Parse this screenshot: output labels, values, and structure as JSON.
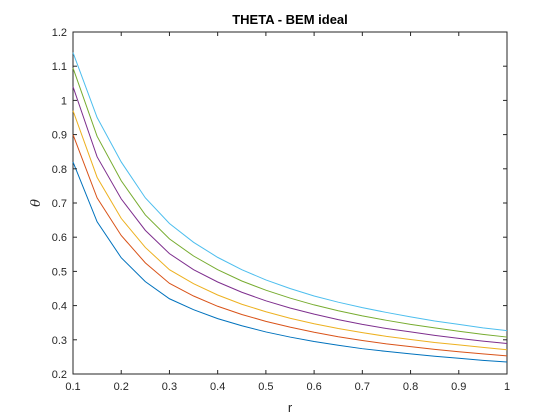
{
  "chart_data": {
    "type": "line",
    "title": "THETA - BEM ideal",
    "xlabel": "r",
    "ylabel": "θ",
    "xlim": [
      0.1,
      1
    ],
    "ylim": [
      0.2,
      1.2
    ],
    "xticks": [
      0.1,
      0.2,
      0.3,
      0.4,
      0.5,
      0.6,
      0.7,
      0.8,
      0.9,
      1
    ],
    "xtick_labels": [
      "0.1",
      "0.2",
      "0.3",
      "0.4",
      "0.5",
      "0.6",
      "0.7",
      "0.8",
      "0.9",
      "1"
    ],
    "yticks": [
      0.2,
      0.3,
      0.4,
      0.5,
      0.6,
      0.7,
      0.8,
      0.9,
      1,
      1.1,
      1.2
    ],
    "ytick_labels": [
      "0.2",
      "0.3",
      "0.4",
      "0.5",
      "0.6",
      "0.7",
      "0.8",
      "0.9",
      "1",
      "1.1",
      "1.2"
    ],
    "grid": false,
    "legend": "none",
    "x": [
      0.1,
      0.15,
      0.2,
      0.25,
      0.3,
      0.35,
      0.4,
      0.45,
      0.5,
      0.55,
      0.6,
      0.65,
      0.7,
      0.75,
      0.8,
      0.85,
      0.9,
      0.95,
      1
    ],
    "series": [
      {
        "color": "#0072BD",
        "values": [
          0.82,
          0.645,
          0.54,
          0.47,
          0.42,
          0.388,
          0.362,
          0.341,
          0.323,
          0.308,
          0.295,
          0.284,
          0.274,
          0.266,
          0.259,
          0.252,
          0.246,
          0.24,
          0.235
        ]
      },
      {
        "color": "#D95319",
        "values": [
          0.9,
          0.715,
          0.605,
          0.525,
          0.465,
          0.428,
          0.398,
          0.374,
          0.354,
          0.337,
          0.322,
          0.309,
          0.298,
          0.288,
          0.28,
          0.272,
          0.265,
          0.259,
          0.253
        ]
      },
      {
        "color": "#EDB120",
        "values": [
          0.97,
          0.775,
          0.655,
          0.57,
          0.505,
          0.464,
          0.431,
          0.404,
          0.382,
          0.363,
          0.347,
          0.333,
          0.321,
          0.31,
          0.301,
          0.292,
          0.285,
          0.278,
          0.271
        ]
      },
      {
        "color": "#7E2F8E",
        "values": [
          1.04,
          0.835,
          0.712,
          0.62,
          0.552,
          0.505,
          0.469,
          0.439,
          0.414,
          0.393,
          0.375,
          0.359,
          0.345,
          0.333,
          0.323,
          0.313,
          0.304,
          0.296,
          0.289
        ]
      },
      {
        "color": "#77AC30",
        "values": [
          1.095,
          0.895,
          0.765,
          0.665,
          0.595,
          0.545,
          0.505,
          0.472,
          0.445,
          0.422,
          0.402,
          0.385,
          0.37,
          0.357,
          0.345,
          0.335,
          0.325,
          0.316,
          0.308
        ]
      },
      {
        "color": "#4DBEEE",
        "values": [
          1.14,
          0.95,
          0.82,
          0.715,
          0.64,
          0.585,
          0.541,
          0.505,
          0.475,
          0.45,
          0.428,
          0.41,
          0.394,
          0.38,
          0.367,
          0.355,
          0.345,
          0.335,
          0.327
        ]
      }
    ]
  }
}
